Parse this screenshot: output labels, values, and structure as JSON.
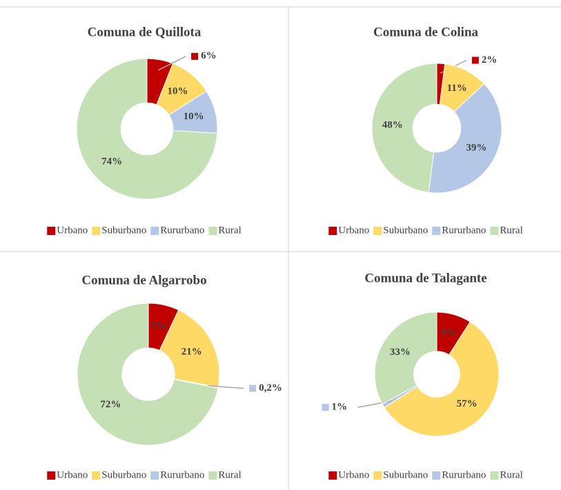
{
  "chart_data": [
    {
      "type": "pie",
      "title": "Comuna de Quillota",
      "categories": [
        "Urbano",
        "Suburbano",
        "Rururbano",
        "Rural"
      ],
      "values": [
        6,
        10,
        10,
        74
      ],
      "value_labels": [
        "6%",
        "10%",
        "10%",
        "74%"
      ],
      "colors": [
        "#c00000",
        "#ffd966",
        "#b4c7e7",
        "#c5e0b4"
      ]
    },
    {
      "type": "pie",
      "title": "Comuna de Colina",
      "categories": [
        "Urbano",
        "Suburbano",
        "Rururbano",
        "Rural"
      ],
      "values": [
        2,
        11,
        39,
        48
      ],
      "value_labels": [
        "2%",
        "11%",
        "39%",
        "48%"
      ],
      "colors": [
        "#c00000",
        "#ffd966",
        "#b4c7e7",
        "#c5e0b4"
      ]
    },
    {
      "type": "pie",
      "title": "Comuna de Algarrobo",
      "categories": [
        "Urbano",
        "Suburbano",
        "Rururbano",
        "Rural"
      ],
      "values": [
        7,
        21,
        0.2,
        72
      ],
      "value_labels": [
        "7%",
        "21%",
        "0,2%",
        "72%"
      ],
      "colors": [
        "#c00000",
        "#ffd966",
        "#b4c7e7",
        "#c5e0b4"
      ]
    },
    {
      "type": "pie",
      "title": "Comuna de Talagante",
      "categories": [
        "Urbano",
        "Suburbano",
        "Rururbano",
        "Rural"
      ],
      "values": [
        9,
        57,
        1,
        33
      ],
      "value_labels": [
        "9%",
        "57%",
        "1%",
        "33%"
      ],
      "colors": [
        "#c00000",
        "#ffd966",
        "#b4c7e7",
        "#c5e0b4"
      ]
    }
  ]
}
